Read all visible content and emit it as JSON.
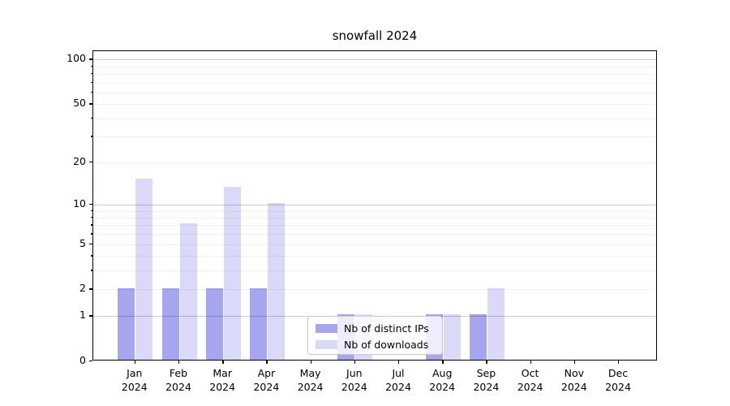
{
  "title": "snowfall 2024",
  "chart_data": {
    "type": "bar",
    "title": "snowfall 2024",
    "categories": [
      "Jan",
      "Feb",
      "Mar",
      "Apr",
      "May",
      "Jun",
      "Jul",
      "Aug",
      "Sep",
      "Oct",
      "Nov",
      "Dec"
    ],
    "category_year_suffix": "2024",
    "series": [
      {
        "name": "Nb of distinct IPs",
        "color": "#a6a6f0",
        "values": [
          2,
          2,
          2,
          2,
          0,
          1,
          0,
          1,
          1,
          0,
          0,
          0
        ]
      },
      {
        "name": "Nb of downloads",
        "color": "#dadaf8",
        "values": [
          15,
          7,
          13,
          10,
          0,
          1,
          0,
          1,
          2,
          0,
          0,
          0
        ]
      }
    ],
    "xlabel": "",
    "ylabel": "",
    "y_ticks_labeled": [
      0,
      1,
      2,
      5,
      10,
      20,
      50,
      100
    ],
    "y_minor_ticks": [
      3,
      4,
      6,
      7,
      8,
      9,
      30,
      40,
      60,
      70,
      80,
      90
    ],
    "y_gridlines_major": [
      1,
      10,
      100
    ],
    "y_scale": "symlog: position proportional to log10(1+value)",
    "ylim": [
      0,
      115
    ],
    "grid": "horizontal major and minor, drawn over translucent bars",
    "legend_position": "inside plot, lower middle-right"
  }
}
